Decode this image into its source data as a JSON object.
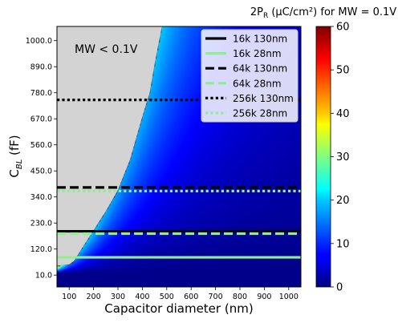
{
  "chart_data": {
    "type": "heatmap",
    "title": "2P_R (µC/cm²) for MW = 0.1V",
    "title_parts": {
      "prefix": "2P",
      "sub": "R",
      "suffix": " (µC/cm²) for MW = 0.1V"
    },
    "xlabel": "Capacitor diameter (nm)",
    "ylabel": "C_BL (fF)",
    "ylabel_parts": {
      "main": "C",
      "sub": "BL",
      "suffix": " (fF)"
    },
    "xlim": [
      50,
      1050
    ],
    "ylim": [
      -40,
      1060
    ],
    "x_ticks": [
      100,
      200,
      300,
      400,
      500,
      600,
      700,
      800,
      900,
      1000
    ],
    "x_tick_labels": [
      "100",
      "200",
      "300",
      "400",
      "500",
      "600",
      "700",
      "800",
      "900",
      "1000"
    ],
    "y_ticks": [
      10,
      120,
      230,
      340,
      450,
      560,
      670,
      780,
      890,
      1000
    ],
    "y_tick_labels": [
      "10.0",
      "120.0",
      "230.0",
      "340.0",
      "450.0",
      "560.0",
      "670.0",
      "780.0",
      "890.0",
      "1000.0"
    ],
    "colorbar": {
      "range": [
        0,
        60
      ],
      "ticks": [
        0,
        10,
        20,
        30,
        40,
        50,
        60
      ],
      "tick_labels": [
        "0",
        "10",
        "20",
        "30",
        "40",
        "50",
        "60"
      ],
      "colormap": "jet"
    },
    "masked_region": {
      "label": "MW < 0.1V",
      "color": "#d3d3d3",
      "boundary": [
        [
          50,
          50
        ],
        [
          100,
          55
        ],
        [
          120,
          70
        ],
        [
          150,
          120
        ],
        [
          200,
          200
        ],
        [
          250,
          280
        ],
        [
          300,
          370
        ],
        [
          350,
          500
        ],
        [
          400,
          680
        ],
        [
          430,
          780
        ],
        [
          450,
          900
        ],
        [
          480,
          1060
        ]
      ]
    },
    "series": [
      {
        "name": "16k 130nm",
        "y": 195,
        "color": "#000000",
        "style": "solid"
      },
      {
        "name": "16k 28nm",
        "y": 85,
        "color": "#90ee90",
        "style": "solid"
      },
      {
        "name": "64k 130nm",
        "y": 380,
        "color": "#000000",
        "style": "dashed"
      },
      {
        "name": "64k 28nm",
        "y": 185,
        "color": "#90ee90",
        "style": "dashed"
      },
      {
        "name": "256k 130nm",
        "y": 750,
        "color": "#000000",
        "style": "dotted"
      },
      {
        "name": "256k 28nm",
        "y": 365,
        "color": "#90ee90",
        "style": "dotted"
      }
    ],
    "legend_position": "top-right",
    "grid": false
  }
}
